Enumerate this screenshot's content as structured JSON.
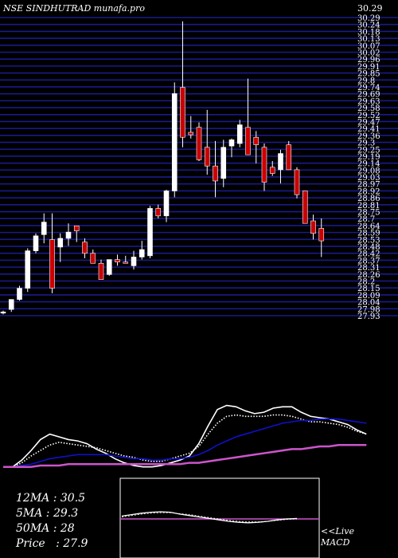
{
  "header": {
    "ticker": "NSE SINDHUTRAD",
    "source": "munafa.pro",
    "last_price_label": "30.29"
  },
  "stats": {
    "ma12_label": "12MA",
    "ma12": "30.5",
    "ma5_label": "5MA",
    "ma5": "29.3",
    "ma50_label": "50MA",
    "ma50": "28",
    "price_label": "Price",
    "price": "27.9"
  },
  "macd_label": {
    "live": "<<Live",
    "name": "MACD"
  },
  "colors": {
    "background": "#000000",
    "grid": "#1a1a8c",
    "up_candle": "#ffffff",
    "down_candle": "#cc0000",
    "ma_fast": "#ffffff",
    "ma_mid": "#ffffff",
    "ma_slow": "#1010cc",
    "ma_long": "#cc55cc",
    "macd_box": "#ffffff",
    "macd_zero": "#cc55cc"
  },
  "chart_data": {
    "type": "candlestick",
    "title": "NSE SINDHUTRAD munafa.pro",
    "ylim": [
      27.9,
      30.29
    ],
    "axis_labels": [
      "30.29",
      "30.24",
      "30.18",
      "30.13",
      "30.07",
      "30.02",
      "29.96",
      "29.91",
      "29.85",
      "29.8",
      "29.74",
      "29.69",
      "29.63",
      "29.58",
      "29.52",
      "29.47",
      "29.41",
      "29.36",
      "29.3",
      "29.25",
      "29.19",
      "29.14",
      "29.08",
      "29.03",
      "28.97",
      "28.92",
      "28.86",
      "28.81",
      "28.75",
      "28.7",
      "28.64",
      "28.59",
      "28.53",
      "28.48",
      "28.42",
      "28.37",
      "28.31",
      "28.26",
      "28.2",
      "28.15",
      "28.09",
      "28.04",
      "27.98",
      "27.93"
    ],
    "candles": [
      {
        "o": 27.93,
        "h": 27.94,
        "l": 27.91,
        "c": 27.93
      },
      {
        "o": 27.95,
        "h": 28.03,
        "l": 27.93,
        "c": 28.03
      },
      {
        "o": 28.03,
        "h": 28.14,
        "l": 28.02,
        "c": 28.12
      },
      {
        "o": 28.12,
        "h": 28.44,
        "l": 28.09,
        "c": 28.42
      },
      {
        "o": 28.42,
        "h": 28.56,
        "l": 28.4,
        "c": 28.54
      },
      {
        "o": 28.55,
        "h": 28.72,
        "l": 28.48,
        "c": 28.65
      },
      {
        "o": 28.51,
        "h": 28.72,
        "l": 28.08,
        "c": 28.12
      },
      {
        "o": 28.45,
        "h": 28.56,
        "l": 28.33,
        "c": 28.52
      },
      {
        "o": 28.52,
        "h": 28.64,
        "l": 28.46,
        "c": 28.57
      },
      {
        "o": 28.62,
        "h": 28.62,
        "l": 28.49,
        "c": 28.58
      },
      {
        "o": 28.49,
        "h": 28.52,
        "l": 28.36,
        "c": 28.4
      },
      {
        "o": 28.4,
        "h": 28.43,
        "l": 28.32,
        "c": 28.32
      },
      {
        "o": 28.32,
        "h": 28.35,
        "l": 28.2,
        "c": 28.19
      },
      {
        "o": 28.23,
        "h": 28.35,
        "l": 28.22,
        "c": 28.35
      },
      {
        "o": 28.35,
        "h": 28.39,
        "l": 28.3,
        "c": 28.33
      },
      {
        "o": 28.33,
        "h": 28.38,
        "l": 28.33,
        "c": 28.32
      },
      {
        "o": 28.3,
        "h": 28.42,
        "l": 28.27,
        "c": 28.37
      },
      {
        "o": 28.37,
        "h": 28.5,
        "l": 28.35,
        "c": 28.43
      },
      {
        "o": 28.38,
        "h": 28.78,
        "l": 28.36,
        "c": 28.76
      },
      {
        "o": 28.76,
        "h": 28.79,
        "l": 28.68,
        "c": 28.7
      },
      {
        "o": 28.7,
        "h": 28.91,
        "l": 28.65,
        "c": 28.9
      },
      {
        "o": 28.9,
        "h": 29.77,
        "l": 28.85,
        "c": 29.68
      },
      {
        "o": 29.73,
        "h": 30.26,
        "l": 29.25,
        "c": 29.33
      },
      {
        "o": 29.37,
        "h": 29.5,
        "l": 29.32,
        "c": 29.35
      },
      {
        "o": 29.41,
        "h": 29.45,
        "l": 29.14,
        "c": 29.15
      },
      {
        "o": 29.25,
        "h": 29.55,
        "l": 29.03,
        "c": 29.1
      },
      {
        "o": 29.1,
        "h": 29.3,
        "l": 28.85,
        "c": 28.98
      },
      {
        "o": 29,
        "h": 29.31,
        "l": 28.93,
        "c": 29.25
      },
      {
        "o": 29.26,
        "h": 29.32,
        "l": 29.17,
        "c": 29.31
      },
      {
        "o": 29.28,
        "h": 29.47,
        "l": 29.25,
        "c": 29.43
      },
      {
        "o": 29.41,
        "h": 29.8,
        "l": 29.19,
        "c": 29.19
      },
      {
        "o": 29.33,
        "h": 29.38,
        "l": 29.12,
        "c": 29.27
      },
      {
        "o": 29.25,
        "h": 29.28,
        "l": 28.9,
        "c": 28.97
      },
      {
        "o": 29.09,
        "h": 29.14,
        "l": 29.02,
        "c": 29.04
      },
      {
        "o": 29.07,
        "h": 29.23,
        "l": 28.96,
        "c": 29.2
      },
      {
        "o": 29.27,
        "h": 29.3,
        "l": 29.09,
        "c": 29.07
      },
      {
        "o": 29.07,
        "h": 29.09,
        "l": 28.84,
        "c": 28.87
      },
      {
        "o": 28.9,
        "h": 28.9,
        "l": 28.64,
        "c": 28.64
      },
      {
        "o": 28.66,
        "h": 28.71,
        "l": 28.51,
        "c": 28.56
      },
      {
        "o": 28.6,
        "h": 28.68,
        "l": 28.37,
        "c": 28.5
      }
    ],
    "ma_lines": [
      {
        "name": "12MA",
        "color": "#ffffff",
        "style": "dotted",
        "values": [
          20,
          20,
          23,
          28,
          32,
          36,
          38,
          37,
          36,
          35,
          34,
          32,
          30,
          28,
          27,
          25,
          24,
          24,
          26,
          28,
          30,
          35,
          44,
          52,
          57,
          58,
          57,
          57,
          57,
          58,
          58,
          57,
          55,
          53,
          53,
          52,
          51,
          49,
          46,
          44
        ]
      },
      {
        "name": "5MA",
        "color": "#ffffff",
        "style": "solid",
        "values": [
          20,
          20,
          25,
          32,
          40,
          44,
          42,
          40,
          39,
          37,
          33,
          30,
          26,
          23,
          21,
          20,
          20,
          21,
          23,
          25,
          28,
          37,
          50,
          62,
          65,
          64,
          61,
          59,
          60,
          63,
          64,
          64,
          60,
          57,
          56,
          55,
          53,
          51,
          47,
          44
        ]
      },
      {
        "name": "slow",
        "color": "#1010cc",
        "style": "solid",
        "values": [
          20,
          20,
          21,
          22,
          24,
          26,
          27,
          28,
          29,
          29,
          29,
          29,
          28,
          27,
          26,
          26,
          25,
          25,
          26,
          26,
          27,
          29,
          32,
          36,
          39,
          42,
          44,
          46,
          48,
          50,
          52,
          53,
          54,
          54,
          55,
          55,
          55,
          54,
          53,
          52
        ]
      },
      {
        "name": "50MA",
        "color": "#cc55cc",
        "style": "solid",
        "values": [
          20,
          20,
          20,
          20,
          21,
          21,
          21,
          22,
          22,
          22,
          22,
          22,
          22,
          22,
          22,
          22,
          22,
          22,
          22,
          22,
          23,
          23,
          24,
          25,
          26,
          27,
          28,
          29,
          30,
          31,
          32,
          33,
          33,
          34,
          35,
          35,
          36,
          36,
          36,
          36
        ]
      }
    ],
    "macd": {
      "values": [
        0.3,
        0.45,
        0.6,
        0.7,
        0.75,
        0.7,
        0.5,
        0.35,
        0.2,
        0.05,
        -0.1,
        -0.25,
        -0.35,
        -0.4,
        -0.35,
        -0.25,
        -0.1,
        0.0,
        0.05
      ],
      "signal": [
        0.2,
        0.35,
        0.5,
        0.6,
        0.65,
        0.65,
        0.55,
        0.45,
        0.3,
        0.15,
        0.0,
        -0.15,
        -0.25,
        -0.3,
        -0.3,
        -0.25,
        -0.15,
        -0.05,
        0.0
      ]
    }
  }
}
